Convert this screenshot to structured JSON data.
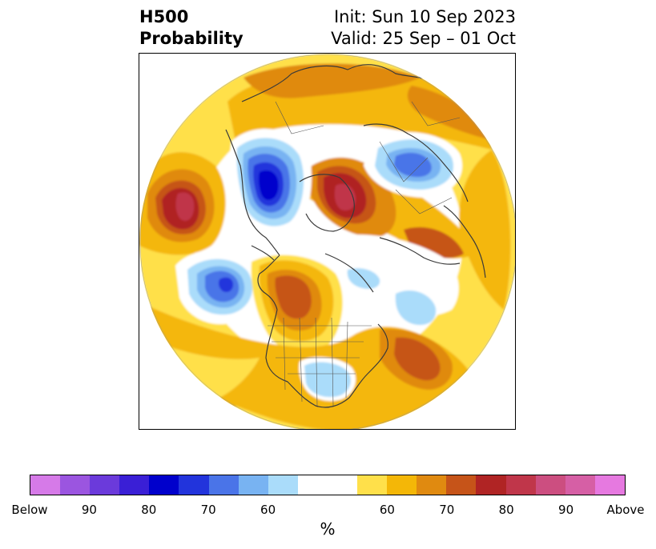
{
  "header": {
    "title_line1": "H500",
    "title_line2": "Probability",
    "init_text": "Init: Sun 10 Sep 2023",
    "valid_text": "Valid: 25 Sep – 01 Oct"
  },
  "map": {
    "projection": "north-polar-stereographic",
    "field": "500 hPa height anomaly probability",
    "features": [
      {
        "name": "north-pacific-above-center",
        "category": "Above 80"
      },
      {
        "name": "gulf-of-alaska-below-center",
        "category": "Below 80"
      },
      {
        "name": "siberia-below-center",
        "category": "Below 80"
      },
      {
        "name": "greenland-above-center",
        "category": "Above 80"
      },
      {
        "name": "eurasia-arctic-below-center",
        "category": "Below 70"
      },
      {
        "name": "western-canada-above",
        "category": "Above 70"
      },
      {
        "name": "north-atlantic-above",
        "category": "Above 70"
      },
      {
        "name": "southeast-us-below",
        "category": "Below 60"
      }
    ]
  },
  "colorbar": {
    "colors": [
      "#d67ae8",
      "#9b55e0",
      "#6b3adb",
      "#3a1fd6",
      "#0000cc",
      "#2234dc",
      "#4a74e8",
      "#78b3f2",
      "#aadcfa",
      "#ffffff",
      "#ffffff",
      "#ffe04a",
      "#f4b707",
      "#e08a10",
      "#c65419",
      "#b02424",
      "#c0364a",
      "#cc4e80",
      "#d65fa5",
      "#e679e0"
    ],
    "labels": [
      "Below",
      "90",
      "80",
      "70",
      "60",
      "60",
      "70",
      "80",
      "90",
      "Above"
    ],
    "unit": "%"
  }
}
